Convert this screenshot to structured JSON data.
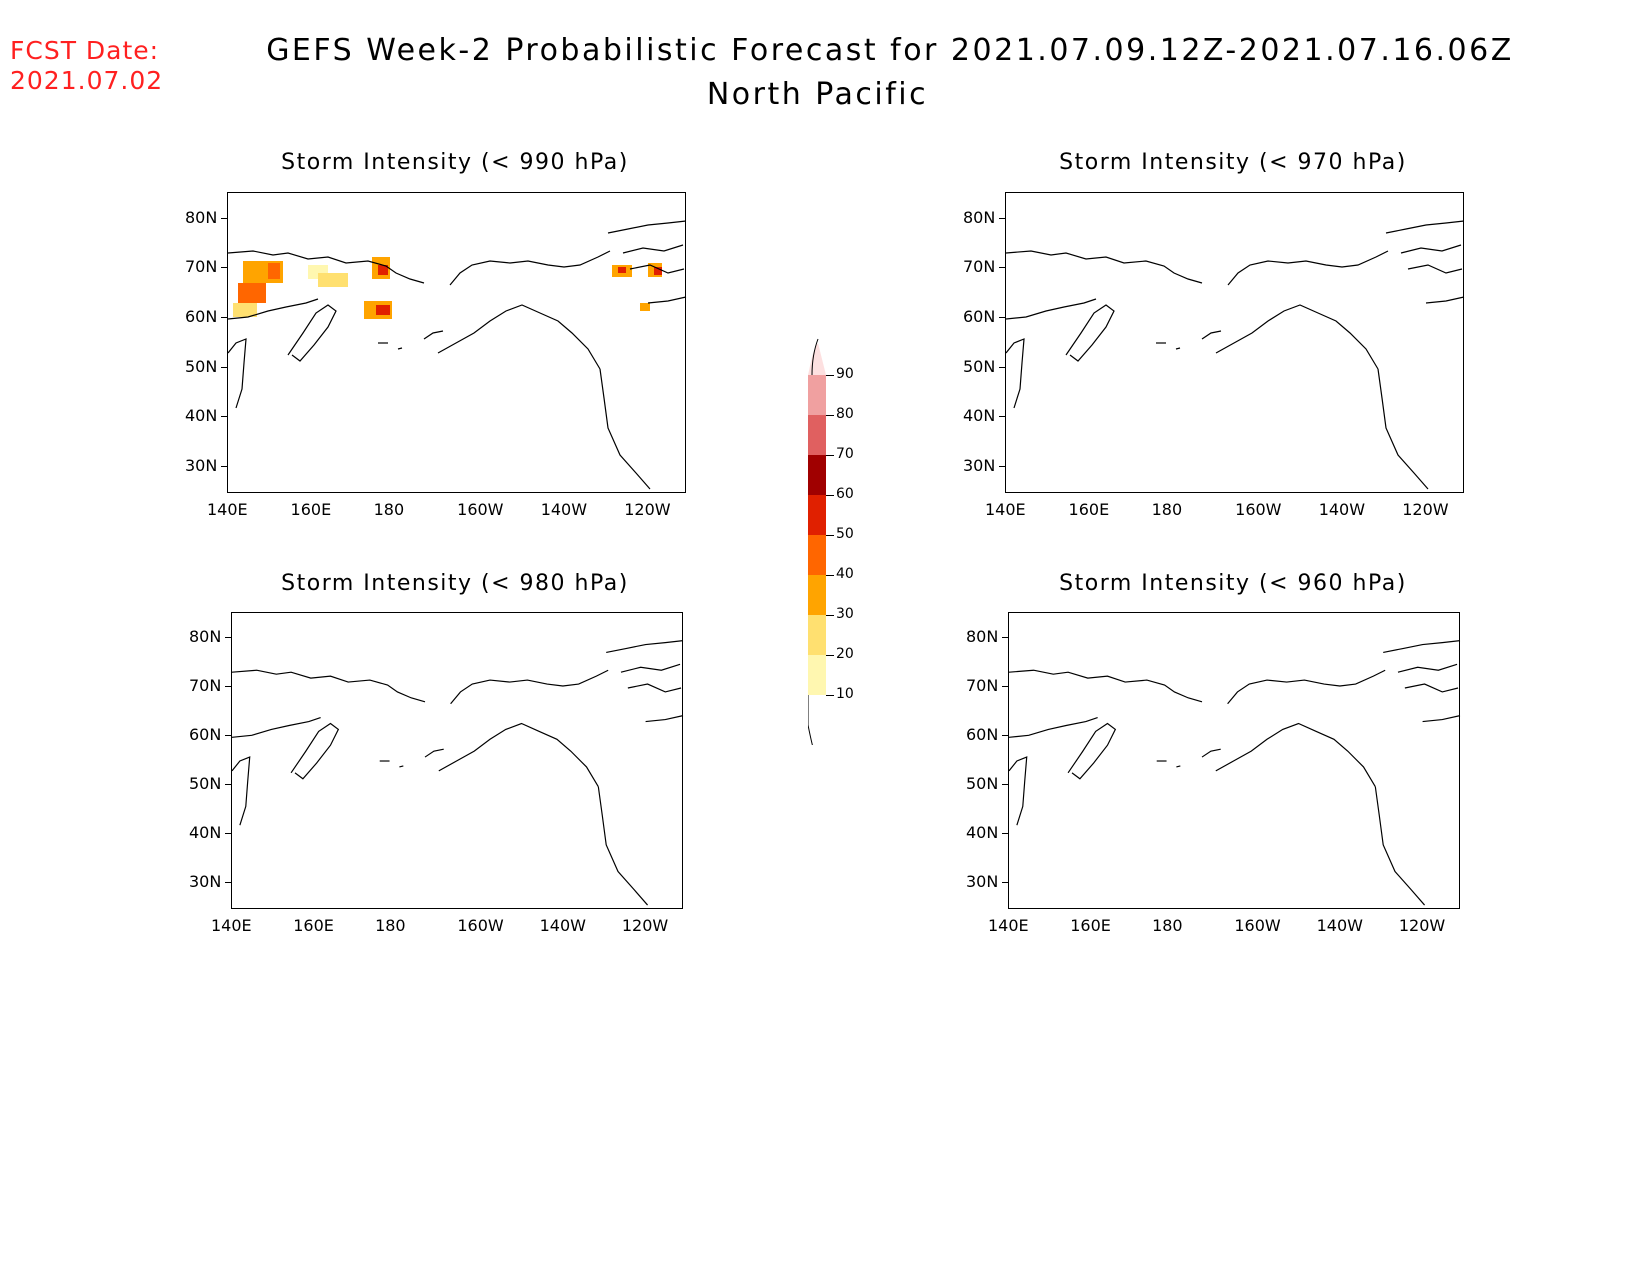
{
  "header": {
    "fcst_label": "FCST Date:",
    "fcst_date": "2021.07.02",
    "title": "GEFS Week-2 Probabilistic Forecast for 2021.07.09.12Z-2021.07.16.06Z",
    "subtitle": "North Pacific"
  },
  "panels": [
    {
      "title": "Storm Intensity (< 990 hPa)",
      "has_data": true
    },
    {
      "title": "Storm Intensity (< 970 hPa)",
      "has_data": false
    },
    {
      "title": "Storm Intensity (< 980 hPa)",
      "has_data": false
    },
    {
      "title": "Storm Intensity (< 960 hPa)",
      "has_data": false
    }
  ],
  "axes": {
    "lat_labels": [
      "80N",
      "70N",
      "60N",
      "50N",
      "40N",
      "30N"
    ],
    "lon_labels": [
      "140E",
      "160E",
      "180",
      "160W",
      "140W",
      "120W"
    ]
  },
  "colorbar": {
    "levels": [
      "10",
      "20",
      "30",
      "40",
      "50",
      "60",
      "70",
      "80",
      "90"
    ],
    "colors": [
      "#fff7b0",
      "#ffe070",
      "#ffa400",
      "#ff6600",
      "#e02000",
      "#a00000",
      "#e06060",
      "#f0a0a0",
      "#fde0e0"
    ]
  }
}
